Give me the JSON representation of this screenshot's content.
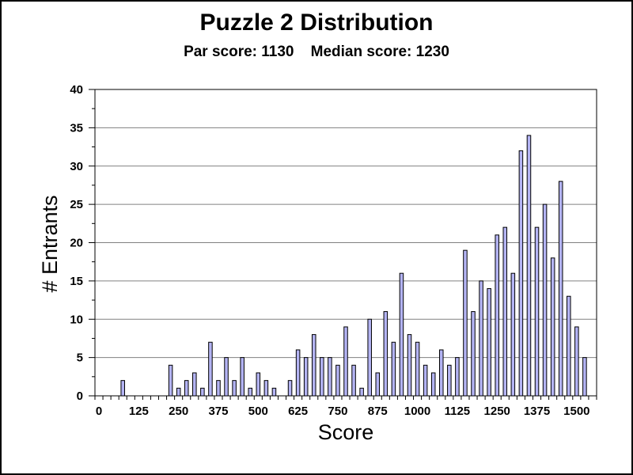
{
  "chart_data": {
    "type": "bar",
    "title": "Puzzle 2 Distribution",
    "subtitle": "Par score: 1130    Median score: 1230",
    "xlabel": "Score",
    "ylabel": "# Entrants",
    "ylim": [
      0,
      40
    ],
    "xlim": [
      -12.5,
      1562.5
    ],
    "bin_width": 25,
    "yticks": [
      0,
      5,
      10,
      15,
      20,
      25,
      30,
      35,
      40
    ],
    "xticks": [
      0,
      125,
      250,
      375,
      500,
      625,
      750,
      875,
      1000,
      1125,
      1250,
      1375,
      1500
    ],
    "grid": true,
    "x": [
      75,
      225,
      250,
      275,
      300,
      325,
      350,
      375,
      400,
      425,
      450,
      475,
      500,
      525,
      550,
      600,
      625,
      650,
      675,
      700,
      725,
      750,
      775,
      800,
      825,
      850,
      875,
      900,
      925,
      950,
      975,
      1000,
      1025,
      1050,
      1075,
      1100,
      1125,
      1150,
      1175,
      1200,
      1225,
      1250,
      1275,
      1300,
      1325,
      1350,
      1375,
      1400,
      1425,
      1450,
      1475,
      1500,
      1525
    ],
    "values": [
      2,
      4,
      1,
      2,
      3,
      1,
      7,
      2,
      5,
      2,
      5,
      1,
      3,
      2,
      1,
      2,
      6,
      5,
      8,
      5,
      5,
      4,
      9,
      4,
      1,
      10,
      3,
      11,
      7,
      16,
      8,
      7,
      4,
      3,
      6,
      4,
      5,
      19,
      11,
      15,
      14,
      21,
      22,
      16,
      32,
      34,
      22,
      25,
      18,
      28,
      13,
      9,
      5
    ]
  },
  "colors": {
    "bar_fill": "#b4b4f4",
    "bar_stroke": "#000000",
    "grid": "#808080",
    "background": "#ffffff"
  }
}
